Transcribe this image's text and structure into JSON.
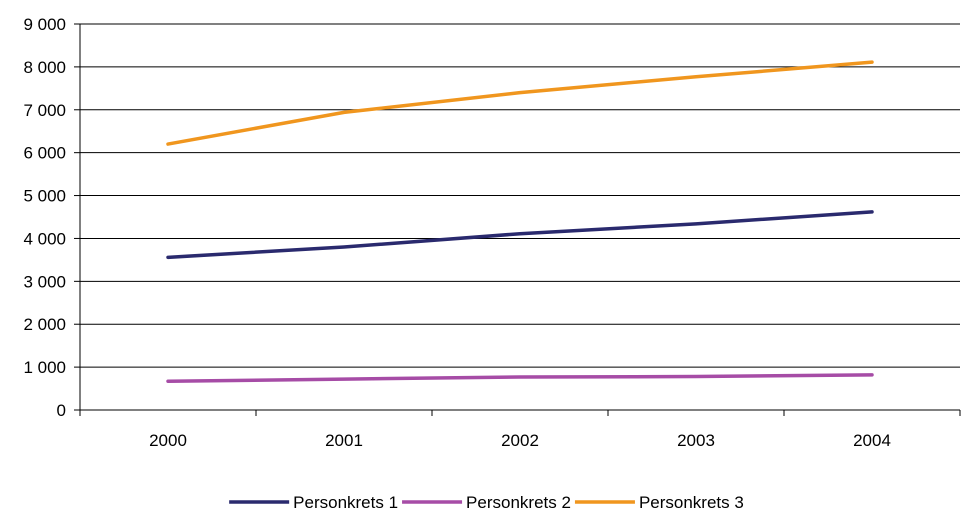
{
  "chart_data": {
    "type": "line",
    "title": "",
    "xlabel": "",
    "ylabel": "",
    "categories": [
      "2000",
      "2001",
      "2002",
      "2003",
      "2004"
    ],
    "ylim": [
      0,
      9000
    ],
    "yticks": [
      0,
      1000,
      2000,
      3000,
      4000,
      5000,
      6000,
      7000,
      8000,
      9000
    ],
    "ytick_labels": [
      "0",
      "1 000",
      "2 000",
      "3 000",
      "4 000",
      "5 000",
      "6 000",
      "7 000",
      "8 000",
      "9 000"
    ],
    "grid": "horizontal",
    "legend_position": "bottom",
    "series": [
      {
        "name": "Personkrets 1",
        "color": "#2a2a6e",
        "values": [
          3560,
          3800,
          4110,
          4340,
          4620
        ]
      },
      {
        "name": "Personkrets 2",
        "color": "#a64ca6",
        "values": [
          670,
          720,
          770,
          780,
          820
        ]
      },
      {
        "name": "Personkrets 3",
        "color": "#f0961e",
        "values": [
          6200,
          6940,
          7400,
          7770,
          8110
        ]
      }
    ]
  }
}
